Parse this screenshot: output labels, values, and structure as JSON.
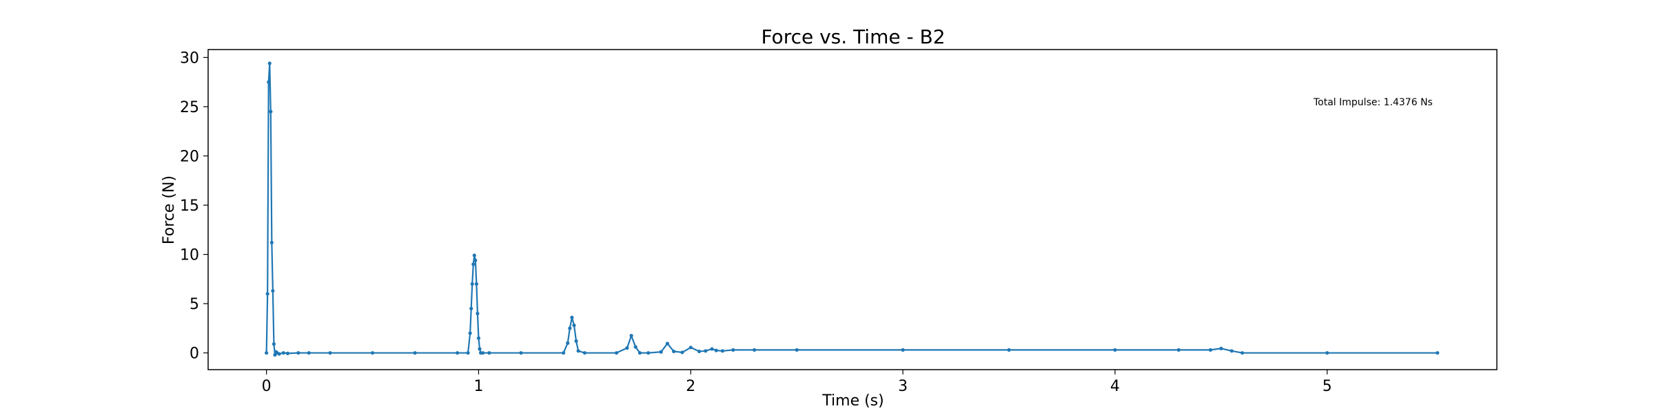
{
  "chart_data": {
    "type": "line",
    "title": "Force vs. Time - B2",
    "xlabel": "Time (s)",
    "ylabel": "Force (N)",
    "xlim": [
      -0.275,
      5.8
    ],
    "ylim": [
      -1.7,
      30.8
    ],
    "xticks": [
      0,
      1,
      2,
      3,
      4,
      5
    ],
    "yticks": [
      0,
      5,
      10,
      15,
      20,
      25,
      30
    ],
    "grid": false,
    "legend": "none",
    "annotation": "Total Impulse: 1.4376 Ns",
    "series": [
      {
        "color": "#1f77b4",
        "marker": "dot",
        "x": [
          0.0,
          0.005,
          0.01,
          0.015,
          0.02,
          0.025,
          0.03,
          0.035,
          0.04,
          0.045,
          0.05,
          0.06,
          0.08,
          0.1,
          0.15,
          0.2,
          0.3,
          0.5,
          0.7,
          0.9,
          0.95,
          0.96,
          0.965,
          0.97,
          0.975,
          0.98,
          0.985,
          0.99,
          0.995,
          1.0,
          1.005,
          1.01,
          1.02,
          1.05,
          1.2,
          1.4,
          1.42,
          1.43,
          1.44,
          1.45,
          1.46,
          1.47,
          1.5,
          1.65,
          1.7,
          1.72,
          1.74,
          1.76,
          1.8,
          1.86,
          1.89,
          1.92,
          1.96,
          2.0,
          2.04,
          2.07,
          2.1,
          2.12,
          2.15,
          2.2,
          2.3,
          2.5,
          3.0,
          3.5,
          4.0,
          4.3,
          4.45,
          4.5,
          4.55,
          4.6,
          5.0,
          5.52
        ],
        "y": [
          0.0,
          6.0,
          27.5,
          29.4,
          24.5,
          11.2,
          6.3,
          0.9,
          -0.2,
          0.1,
          0.0,
          -0.1,
          0.0,
          -0.05,
          0.0,
          0.0,
          0.0,
          0.0,
          0.0,
          0.0,
          0.0,
          2.0,
          4.5,
          7.0,
          9.0,
          9.9,
          9.4,
          7.0,
          4.0,
          1.5,
          0.4,
          0.0,
          0.0,
          0.0,
          0.0,
          0.0,
          1.0,
          2.5,
          3.6,
          2.8,
          1.2,
          0.2,
          0.0,
          0.0,
          0.5,
          1.75,
          0.6,
          0.0,
          0.0,
          0.1,
          0.95,
          0.15,
          0.05,
          0.55,
          0.15,
          0.2,
          0.4,
          0.25,
          0.2,
          0.3,
          0.3,
          0.3,
          0.3,
          0.3,
          0.3,
          0.3,
          0.3,
          0.45,
          0.2,
          0.0,
          0.0,
          0.0
        ]
      }
    ]
  }
}
